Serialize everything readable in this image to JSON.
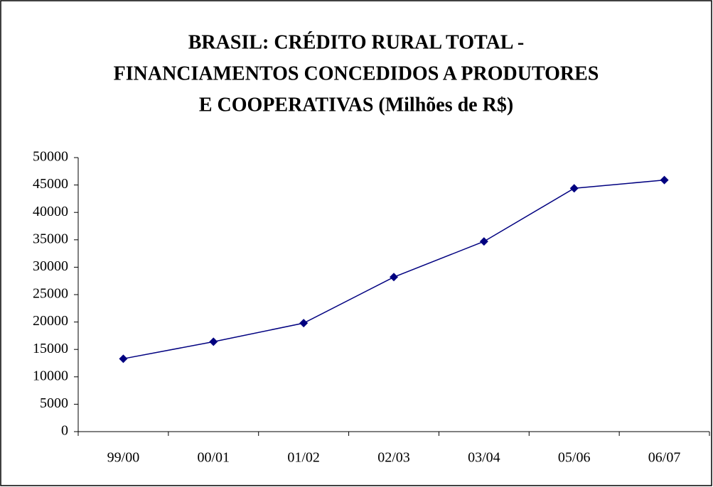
{
  "chart_data": {
    "type": "line",
    "title": [
      "BRASIL: CRÉDITO RURAL TOTAL -",
      "FINANCIAMENTOS CONCEDIDOS A PRODUTORES",
      "E COOPERATIVAS (Milhões de R$)"
    ],
    "categories": [
      "99/00",
      "00/01",
      "01/02",
      "02/03",
      "03/04",
      "05/06",
      "06/07"
    ],
    "values": [
      13300,
      16400,
      19800,
      28200,
      34700,
      44400,
      45900
    ],
    "color": "#000080",
    "ylim": [
      0,
      50000
    ],
    "yticks": [
      0,
      5000,
      10000,
      15000,
      20000,
      25000,
      30000,
      35000,
      40000,
      45000,
      50000
    ],
    "grid": false
  }
}
